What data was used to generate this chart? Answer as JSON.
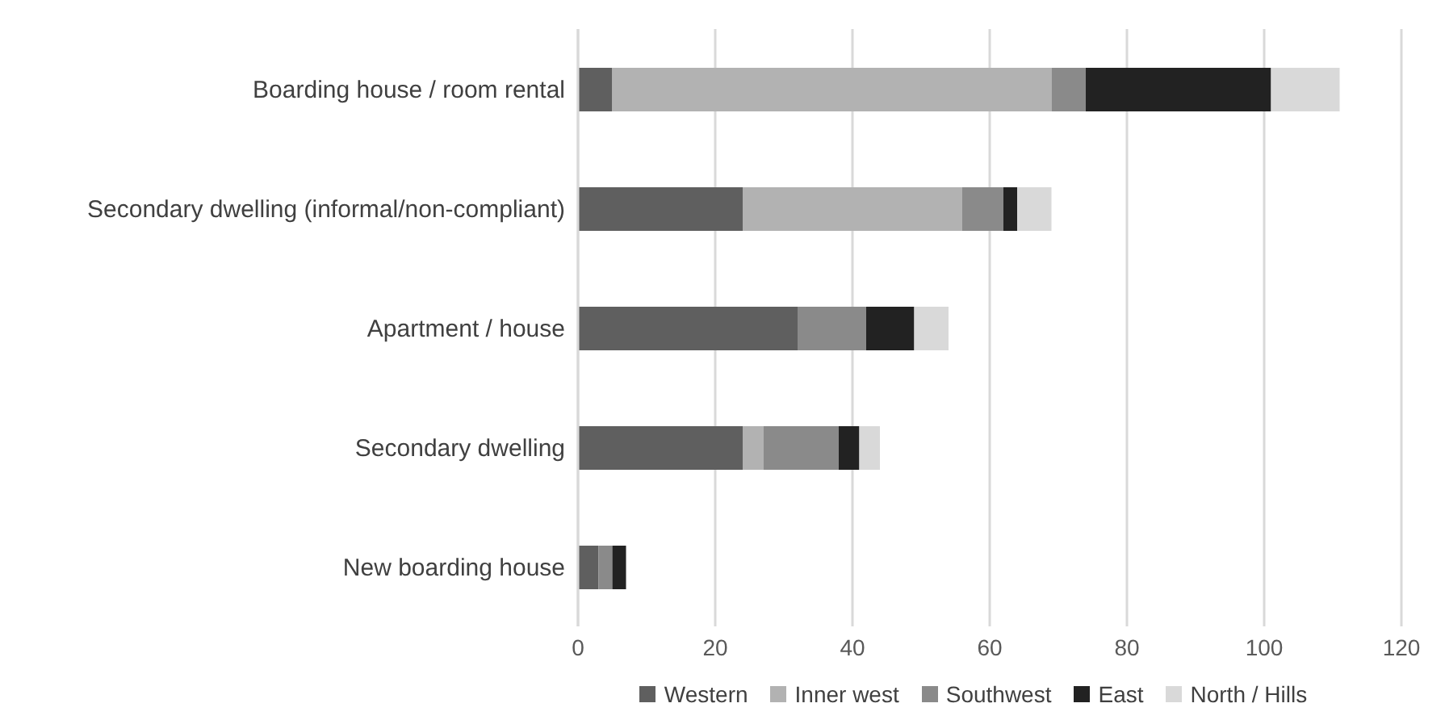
{
  "chart_data": {
    "type": "bar",
    "orientation": "horizontal",
    "stacked": true,
    "categories": [
      "Boarding house / room rental",
      "Secondary dwelling (informal/non-compliant)",
      "Apartment / house",
      "Secondary dwelling ",
      "New  boarding house"
    ],
    "series": [
      {
        "name": "Western",
        "color": "#5f5f5f",
        "values": [
          5,
          24,
          32,
          24,
          3
        ]
      },
      {
        "name": "Inner west",
        "color": "#b2b2b2",
        "values": [
          64,
          32,
          0,
          3,
          0
        ]
      },
      {
        "name": "Southwest",
        "color": "#8a8a8a",
        "values": [
          5,
          6,
          10,
          11,
          2
        ]
      },
      {
        "name": "East",
        "color": "#222222",
        "values": [
          27,
          2,
          7,
          3,
          2
        ]
      },
      {
        "name": "North / Hills",
        "color": "#d9d9d9",
        "values": [
          10,
          5,
          5,
          3,
          0
        ]
      }
    ],
    "xlim": [
      0,
      120
    ],
    "xticks": [
      0,
      20,
      40,
      60,
      80,
      100,
      120
    ],
    "grid": "x",
    "legend": "bottom"
  }
}
